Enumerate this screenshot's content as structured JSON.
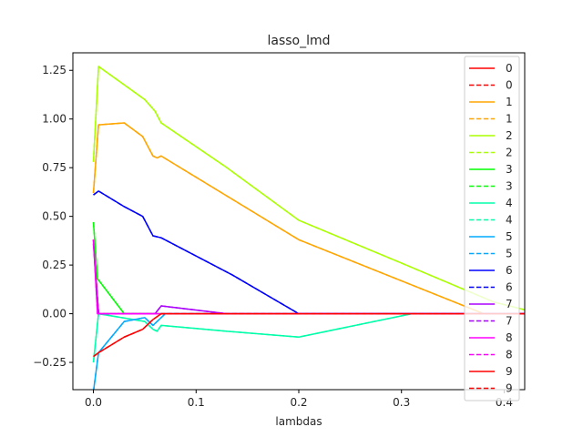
{
  "chart_data": {
    "type": "line",
    "title": "lasso_lmd",
    "xlabel": "lambdas",
    "ylabel": "",
    "xlim": [
      -0.02,
      0.42
    ],
    "ylim": [
      -0.39,
      1.34
    ],
    "x_ticks": [
      0.0,
      0.1,
      0.2,
      0.3,
      0.4
    ],
    "x_tick_labels": [
      "0.0",
      "0.1",
      "0.2",
      "0.3",
      "0.4"
    ],
    "y_ticks": [
      -0.25,
      0.0,
      0.25,
      0.5,
      0.75,
      1.0,
      1.25
    ],
    "y_tick_labels": [
      "−0.25",
      "0.00",
      "0.25",
      "0.50",
      "0.75",
      "1.00",
      "1.25"
    ],
    "grid": false,
    "legend_position": "upper-right",
    "series": [
      {
        "name": "0",
        "color": "#ff0000",
        "style": "solid",
        "x": [
          0.0,
          0.005,
          0.1,
          0.2,
          0.3,
          0.4,
          0.42
        ],
        "y": [
          0.38,
          0.0,
          0.0,
          0.0,
          0.0,
          0.0,
          0.0
        ]
      },
      {
        "name": "0",
        "color": "#ff0000",
        "style": "dashed",
        "x": [
          0.0,
          0.005,
          0.1,
          0.2,
          0.3,
          0.4,
          0.42
        ],
        "y": [
          0.38,
          0.0,
          0.0,
          0.0,
          0.0,
          0.0,
          0.0
        ]
      },
      {
        "name": "1",
        "color": "#ffa500",
        "style": "solid",
        "x": [
          0.0,
          0.005,
          0.03,
          0.048,
          0.058,
          0.062,
          0.066,
          0.2,
          0.38,
          0.42
        ],
        "y": [
          0.62,
          0.97,
          0.98,
          0.91,
          0.81,
          0.8,
          0.81,
          0.38,
          0.0,
          0.0
        ]
      },
      {
        "name": "1",
        "color": "#ffa500",
        "style": "dashed",
        "x": [
          0.0,
          0.005,
          0.03,
          0.048,
          0.058,
          0.062,
          0.066,
          0.2,
          0.38,
          0.42
        ],
        "y": [
          0.62,
          0.97,
          0.98,
          0.91,
          0.81,
          0.8,
          0.81,
          0.38,
          0.0,
          0.0
        ]
      },
      {
        "name": "2",
        "color": "#aaff00",
        "style": "solid",
        "x": [
          0.0,
          0.005,
          0.05,
          0.06,
          0.066,
          0.13,
          0.2,
          0.3,
          0.39,
          0.42
        ],
        "y": [
          0.78,
          1.27,
          1.1,
          1.04,
          0.98,
          0.75,
          0.48,
          0.26,
          0.06,
          0.02
        ]
      },
      {
        "name": "2",
        "color": "#aaff00",
        "style": "dashed",
        "x": [
          0.0,
          0.005,
          0.05,
          0.06,
          0.066,
          0.13,
          0.2,
          0.3,
          0.39,
          0.42
        ],
        "y": [
          0.78,
          1.27,
          1.1,
          1.04,
          0.98,
          0.75,
          0.48,
          0.26,
          0.06,
          0.02
        ]
      },
      {
        "name": "3",
        "color": "#00ff00",
        "style": "solid",
        "x": [
          0.0,
          0.004,
          0.03,
          0.1,
          0.2,
          0.3,
          0.4,
          0.42
        ],
        "y": [
          0.47,
          0.18,
          0.0,
          0.0,
          0.0,
          0.0,
          0.0,
          0.0
        ]
      },
      {
        "name": "3",
        "color": "#00ff00",
        "style": "dashed",
        "x": [
          0.0,
          0.004,
          0.03,
          0.1,
          0.2,
          0.3,
          0.4,
          0.42
        ],
        "y": [
          0.47,
          0.18,
          0.0,
          0.0,
          0.0,
          0.0,
          0.0,
          0.0
        ]
      },
      {
        "name": "4",
        "color": "#00ffaa",
        "style": "solid",
        "x": [
          0.0,
          0.005,
          0.05,
          0.058,
          0.062,
          0.066,
          0.13,
          0.2,
          0.31,
          0.42
        ],
        "y": [
          -0.25,
          0.0,
          -0.04,
          -0.08,
          -0.09,
          -0.06,
          -0.09,
          -0.12,
          0.0,
          0.0
        ]
      },
      {
        "name": "4",
        "color": "#00ffaa",
        "style": "dashed",
        "x": [
          0.0,
          0.005,
          0.05,
          0.058,
          0.062,
          0.066,
          0.13,
          0.2,
          0.31,
          0.42
        ],
        "y": [
          -0.25,
          0.0,
          -0.04,
          -0.08,
          -0.09,
          -0.06,
          -0.09,
          -0.12,
          0.0,
          0.0
        ]
      },
      {
        "name": "5",
        "color": "#00aaff",
        "style": "solid",
        "x": [
          0.0,
          0.005,
          0.03,
          0.05,
          0.058,
          0.066,
          0.07,
          0.1,
          0.2,
          0.42
        ],
        "y": [
          -0.4,
          -0.2,
          -0.04,
          -0.02,
          -0.06,
          -0.02,
          0.0,
          0.0,
          0.0,
          0.0
        ]
      },
      {
        "name": "5",
        "color": "#00aaff",
        "style": "dashed",
        "x": [
          0.0,
          0.005,
          0.03,
          0.05,
          0.058,
          0.066,
          0.07,
          0.1,
          0.2,
          0.42
        ],
        "y": [
          -0.4,
          -0.2,
          -0.04,
          -0.02,
          -0.06,
          -0.02,
          0.0,
          0.0,
          0.0,
          0.0
        ]
      },
      {
        "name": "6",
        "color": "#0000ff",
        "style": "solid",
        "x": [
          0.0,
          0.005,
          0.03,
          0.048,
          0.058,
          0.066,
          0.135,
          0.2,
          0.3,
          0.42
        ],
        "y": [
          0.61,
          0.63,
          0.55,
          0.5,
          0.4,
          0.39,
          0.2,
          0.0,
          0.0,
          0.0
        ]
      },
      {
        "name": "6",
        "color": "#0000ff",
        "style": "dashed",
        "x": [
          0.0,
          0.005,
          0.03,
          0.048,
          0.058,
          0.066,
          0.135,
          0.2,
          0.3,
          0.42
        ],
        "y": [
          0.61,
          0.63,
          0.55,
          0.5,
          0.4,
          0.39,
          0.2,
          0.0,
          0.0,
          0.0
        ]
      },
      {
        "name": "7",
        "color": "#aa00ff",
        "style": "solid",
        "x": [
          0.0,
          0.005,
          0.05,
          0.06,
          0.066,
          0.13,
          0.2,
          0.3,
          0.42
        ],
        "y": [
          0.36,
          0.0,
          0.0,
          0.0,
          0.04,
          0.0,
          0.0,
          0.0,
          0.0
        ]
      },
      {
        "name": "7",
        "color": "#aa00ff",
        "style": "dashed",
        "x": [
          0.0,
          0.005,
          0.05,
          0.06,
          0.066,
          0.13,
          0.2,
          0.3,
          0.42
        ],
        "y": [
          0.36,
          0.0,
          0.0,
          0.0,
          0.04,
          0.0,
          0.0,
          0.0,
          0.0
        ]
      },
      {
        "name": "8",
        "color": "#ff00ff",
        "style": "solid",
        "x": [
          0.0,
          0.004,
          0.1,
          0.2,
          0.3,
          0.42
        ],
        "y": [
          0.38,
          0.0,
          0.0,
          0.0,
          0.0,
          0.0
        ]
      },
      {
        "name": "8",
        "color": "#ff00ff",
        "style": "dashed",
        "x": [
          0.0,
          0.004,
          0.1,
          0.2,
          0.3,
          0.42
        ],
        "y": [
          0.38,
          0.0,
          0.0,
          0.0,
          0.0,
          0.0
        ]
      },
      {
        "name": "9",
        "color": "#ff0000",
        "style": "solid",
        "x": [
          0.0,
          0.005,
          0.03,
          0.048,
          0.058,
          0.066,
          0.1,
          0.2,
          0.3,
          0.42
        ],
        "y": [
          -0.22,
          -0.2,
          -0.12,
          -0.08,
          -0.03,
          0.0,
          0.0,
          0.0,
          0.0,
          0.0
        ]
      },
      {
        "name": "9",
        "color": "#ff0000",
        "style": "dashed",
        "x": [
          0.0,
          0.005,
          0.03,
          0.048,
          0.058,
          0.066,
          0.1,
          0.2,
          0.3,
          0.42
        ],
        "y": [
          -0.22,
          -0.2,
          -0.12,
          -0.08,
          -0.03,
          0.0,
          0.0,
          0.0,
          0.0,
          0.0
        ]
      }
    ]
  }
}
